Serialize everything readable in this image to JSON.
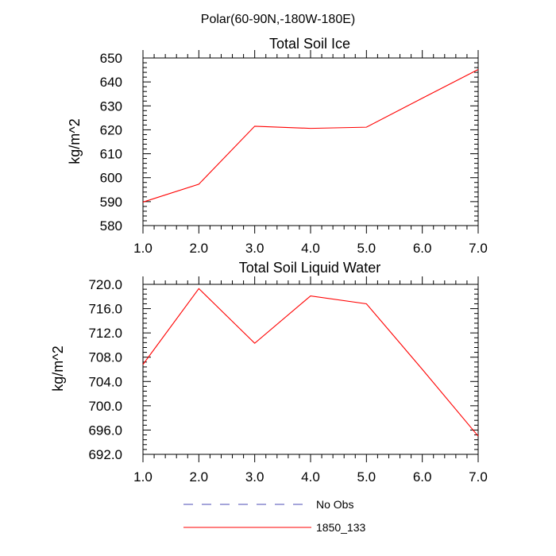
{
  "figure": {
    "title": "Polar(60-90N,-180W-180E)",
    "legend": [
      {
        "label": "No Obs",
        "color": "#4b4bb4",
        "dash": true
      },
      {
        "label": "1850_133",
        "color": "#ff0000",
        "dash": false
      }
    ]
  },
  "chart_data": [
    {
      "type": "line",
      "title": "Total Soil Ice",
      "xlabel": "",
      "ylabel": "kg/m^2",
      "xlim": [
        1.0,
        7.0
      ],
      "ylim": [
        580,
        650
      ],
      "x_ticks": [
        "1.0",
        "2.0",
        "3.0",
        "4.0",
        "5.0",
        "6.0",
        "7.0"
      ],
      "y_ticks": [
        "580",
        "590",
        "600",
        "610",
        "620",
        "630",
        "640",
        "650"
      ],
      "series": [
        {
          "name": "1850_133",
          "color": "#ff0000",
          "x": [
            1,
            2,
            3,
            4,
            5,
            6,
            7
          ],
          "values": [
            589.8,
            597.3,
            621.5,
            620.6,
            621.1,
            633.2,
            645.2
          ]
        }
      ]
    },
    {
      "type": "line",
      "title": "Total Soil Liquid Water",
      "xlabel": "",
      "ylabel": "kg/m^2",
      "xlim": [
        1.0,
        7.0
      ],
      "ylim": [
        692.0,
        720.0
      ],
      "x_ticks": [
        "1.0",
        "2.0",
        "3.0",
        "4.0",
        "5.0",
        "6.0",
        "7.0"
      ],
      "y_ticks": [
        "692.0",
        "696.0",
        "700.0",
        "704.0",
        "708.0",
        "712.0",
        "716.0",
        "720.0"
      ],
      "series": [
        {
          "name": "1850_133",
          "color": "#ff0000",
          "x": [
            1,
            2,
            3,
            4,
            5,
            6,
            7
          ],
          "values": [
            706.8,
            719.3,
            710.3,
            718.1,
            716.8,
            706.0,
            695.0
          ]
        }
      ]
    }
  ]
}
